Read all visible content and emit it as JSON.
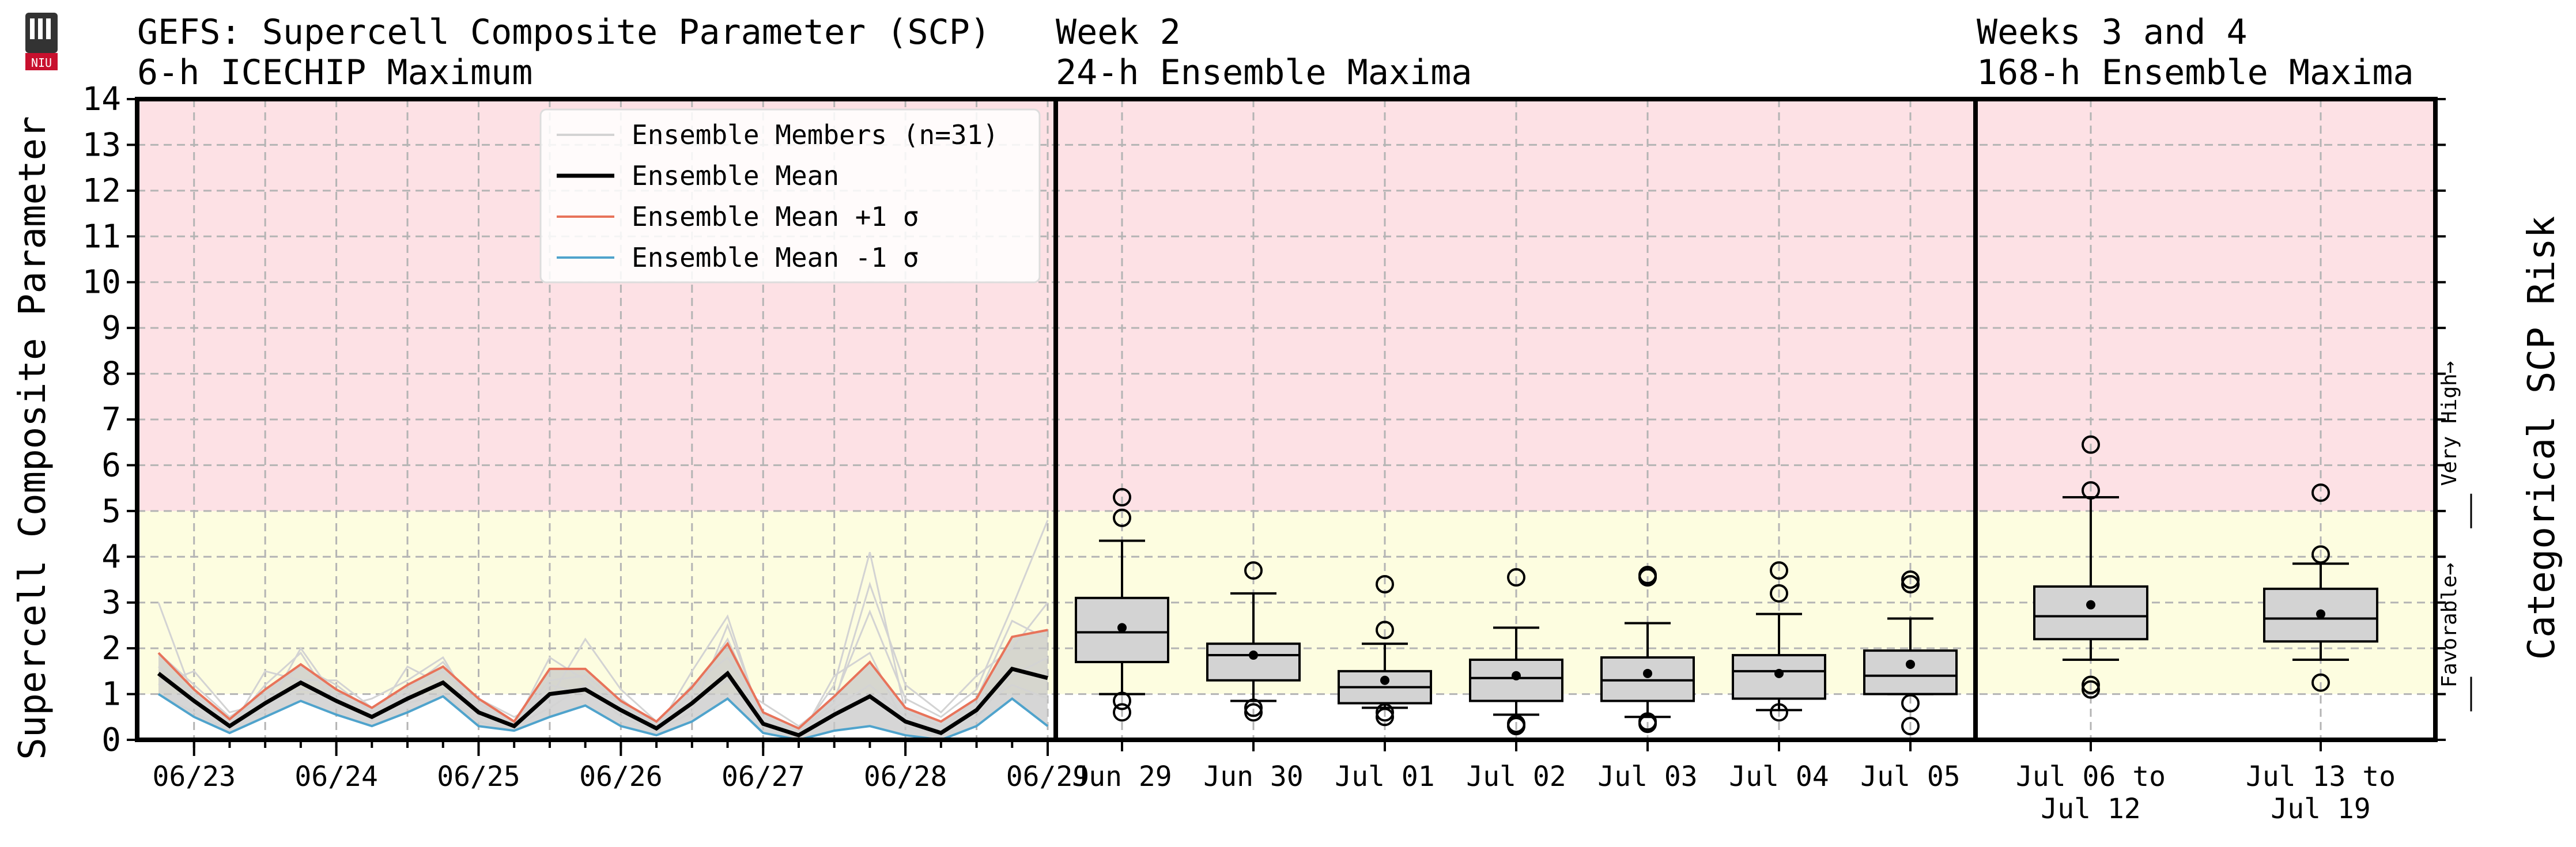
{
  "header": {
    "left_title_line1": "GEFS: Supercell Composite Parameter (SCP)",
    "left_title_line2": "6-h ICECHIP Maximum",
    "mid_title_line1": "Week 2",
    "mid_title_line2": "24-h Ensemble Maxima",
    "right_title_line1": "Weeks 3 and 4",
    "right_title_line2": "168-h Ensemble Maxima",
    "logo_text": "NIU"
  },
  "risk_axis": {
    "label": "Categorical SCP Risk",
    "favorable_label": "Favorable→",
    "very_high_label": "Very High→",
    "favorable_range": [
      1,
      5
    ],
    "very_high_range": [
      5,
      14
    ]
  },
  "colors": {
    "favorable_band": "#fdfde0",
    "very_high_band": "#fde1e5",
    "mean_line": "#000000",
    "plus_sigma": "#e8735a",
    "minus_sigma": "#4fa3cc",
    "members": "#d3d3d3",
    "box_fill": "#d3d3d3",
    "spread_fill": "#c8c8c8"
  },
  "chart_data": [
    {
      "type": "line",
      "title": "GEFS: Supercell Composite Parameter (SCP) 6-h ICECHIP Maximum",
      "ylabel": "Supercell Composite Parameter",
      "ylim": [
        0,
        14
      ],
      "yticks": [
        0,
        1,
        2,
        3,
        4,
        5,
        6,
        7,
        8,
        9,
        10,
        11,
        12,
        13,
        14
      ],
      "x_tick_labels": [
        "06/23",
        "06/24",
        "06/25",
        "06/26",
        "06/27",
        "06/28",
        "06/29"
      ],
      "grid": true,
      "legend_position": "top-right",
      "legend": [
        "Ensemble Members (n=31)",
        "Ensemble Mean",
        "Ensemble Mean +1 σ",
        "Ensemble Mean -1 σ"
      ],
      "series": [
        {
          "name": "Ensemble Mean",
          "values": [
            1.45,
            0.85,
            0.3,
            0.8,
            1.25,
            0.85,
            0.5,
            0.9,
            1.25,
            0.6,
            0.3,
            1.0,
            1.1,
            0.65,
            0.25,
            0.8,
            1.45,
            0.35,
            0.1,
            0.55,
            0.95,
            0.4,
            0.15,
            0.65,
            1.55,
            1.35
          ]
        },
        {
          "name": "Ensemble Mean +1 σ",
          "values": [
            1.9,
            1.1,
            0.45,
            1.1,
            1.65,
            1.1,
            0.7,
            1.2,
            1.6,
            0.9,
            0.4,
            1.55,
            1.55,
            0.85,
            0.4,
            1.15,
            2.1,
            0.6,
            0.25,
            0.95,
            1.7,
            0.7,
            0.4,
            0.9,
            2.25,
            2.4
          ]
        },
        {
          "name": "Ensemble Mean -1 σ",
          "values": [
            1.0,
            0.5,
            0.15,
            0.5,
            0.85,
            0.55,
            0.3,
            0.6,
            0.95,
            0.3,
            0.2,
            0.5,
            0.75,
            0.3,
            0.1,
            0.4,
            0.9,
            0.15,
            0.0,
            0.2,
            0.3,
            0.1,
            0.0,
            0.3,
            0.9,
            0.3
          ]
        }
      ],
      "members": [
        [
          1.9,
          1.2,
          0.5,
          1.0,
          1.6,
          1.2,
          0.6,
          1.0,
          1.5,
          0.8,
          0.4,
          1.3,
          1.4,
          0.8,
          0.3,
          1.0,
          2.2,
          0.5,
          0.2,
          0.7,
          1.2,
          0.5,
          0.2,
          0.9,
          2.6,
          2.2
        ],
        [
          3.0,
          0.9,
          0.3,
          1.2,
          1.9,
          0.7,
          0.9,
          1.3,
          1.8,
          0.5,
          0.3,
          1.8,
          1.3,
          0.6,
          0.2,
          1.5,
          2.7,
          0.3,
          0.1,
          1.2,
          4.1,
          0.6,
          0.3,
          0.5,
          1.4,
          1.8
        ],
        [
          1.2,
          1.5,
          0.6,
          0.8,
          1.1,
          1.0,
          0.4,
          1.6,
          1.2,
          0.9,
          0.5,
          0.9,
          2.2,
          1.1,
          0.4,
          0.8,
          1.3,
          0.8,
          0.3,
          0.9,
          2.8,
          0.9,
          0.5,
          1.1,
          2.9,
          4.8
        ],
        [
          1.0,
          0.6,
          0.2,
          1.5,
          1.3,
          1.3,
          0.7,
          0.8,
          1.0,
          0.4,
          0.2,
          1.2,
          1.0,
          0.9,
          0.3,
          1.2,
          1.8,
          0.6,
          0.0,
          1.4,
          1.9,
          0.3,
          0.1,
          0.7,
          1.2,
          0.9
        ],
        [
          1.6,
          1.0,
          0.4,
          0.6,
          2.0,
          0.9,
          0.5,
          1.1,
          1.7,
          0.7,
          0.3,
          0.7,
          1.2,
          0.5,
          0.2,
          0.6,
          2.5,
          0.4,
          0.2,
          0.8,
          3.4,
          1.2,
          0.6,
          1.4,
          2.0,
          3.0
        ]
      ]
    },
    {
      "type": "box",
      "title": "Week 2 24-h Ensemble Maxima",
      "ylim": [
        0,
        14
      ],
      "categories": [
        "Jun 29",
        "Jun 30",
        "Jul 01",
        "Jul 02",
        "Jul 03",
        "Jul 04",
        "Jul 05"
      ],
      "boxes": [
        {
          "whislo": 1.0,
          "q1": 1.7,
          "med": 2.35,
          "q3": 3.1,
          "whishi": 4.35,
          "mean": 2.45,
          "fliers": [
            0.6,
            0.85,
            4.85,
            5.3
          ]
        },
        {
          "whislo": 0.85,
          "q1": 1.3,
          "med": 1.85,
          "q3": 2.1,
          "whishi": 3.2,
          "mean": 1.85,
          "fliers": [
            0.6,
            0.7,
            3.7
          ]
        },
        {
          "whislo": 0.7,
          "q1": 0.8,
          "med": 1.15,
          "q3": 1.5,
          "whishi": 2.1,
          "mean": 1.3,
          "fliers": [
            0.5,
            0.6,
            2.4,
            3.4
          ]
        },
        {
          "whislo": 0.55,
          "q1": 0.85,
          "med": 1.35,
          "q3": 1.75,
          "whishi": 2.45,
          "mean": 1.4,
          "fliers": [
            0.3,
            0.35,
            3.55
          ]
        },
        {
          "whislo": 0.5,
          "q1": 0.85,
          "med": 1.3,
          "q3": 1.8,
          "whishi": 2.55,
          "mean": 1.45,
          "fliers": [
            0.35,
            0.4,
            3.55,
            3.6
          ]
        },
        {
          "whislo": 0.65,
          "q1": 0.9,
          "med": 1.5,
          "q3": 1.85,
          "whishi": 2.75,
          "mean": 1.45,
          "fliers": [
            0.6,
            3.2,
            3.7
          ]
        },
        {
          "whislo": 1.0,
          "q1": 1.0,
          "med": 1.4,
          "q3": 1.95,
          "whishi": 2.65,
          "mean": 1.65,
          "fliers": [
            0.3,
            0.8,
            3.4,
            3.5
          ]
        }
      ]
    },
    {
      "type": "box",
      "title": "Weeks 3 and 4 168-h Ensemble Maxima",
      "ylim": [
        0,
        14
      ],
      "categories": [
        "Jul 06 to\nJul 12",
        "Jul 13 to\nJul 19"
      ],
      "boxes": [
        {
          "whislo": 1.75,
          "q1": 2.2,
          "med": 2.7,
          "q3": 3.35,
          "whishi": 5.3,
          "mean": 2.95,
          "fliers": [
            1.1,
            1.2,
            5.45,
            6.45
          ]
        },
        {
          "whislo": 1.75,
          "q1": 2.15,
          "med": 2.65,
          "q3": 3.3,
          "whishi": 3.85,
          "mean": 2.75,
          "fliers": [
            1.25,
            4.05,
            5.4
          ]
        }
      ]
    }
  ]
}
